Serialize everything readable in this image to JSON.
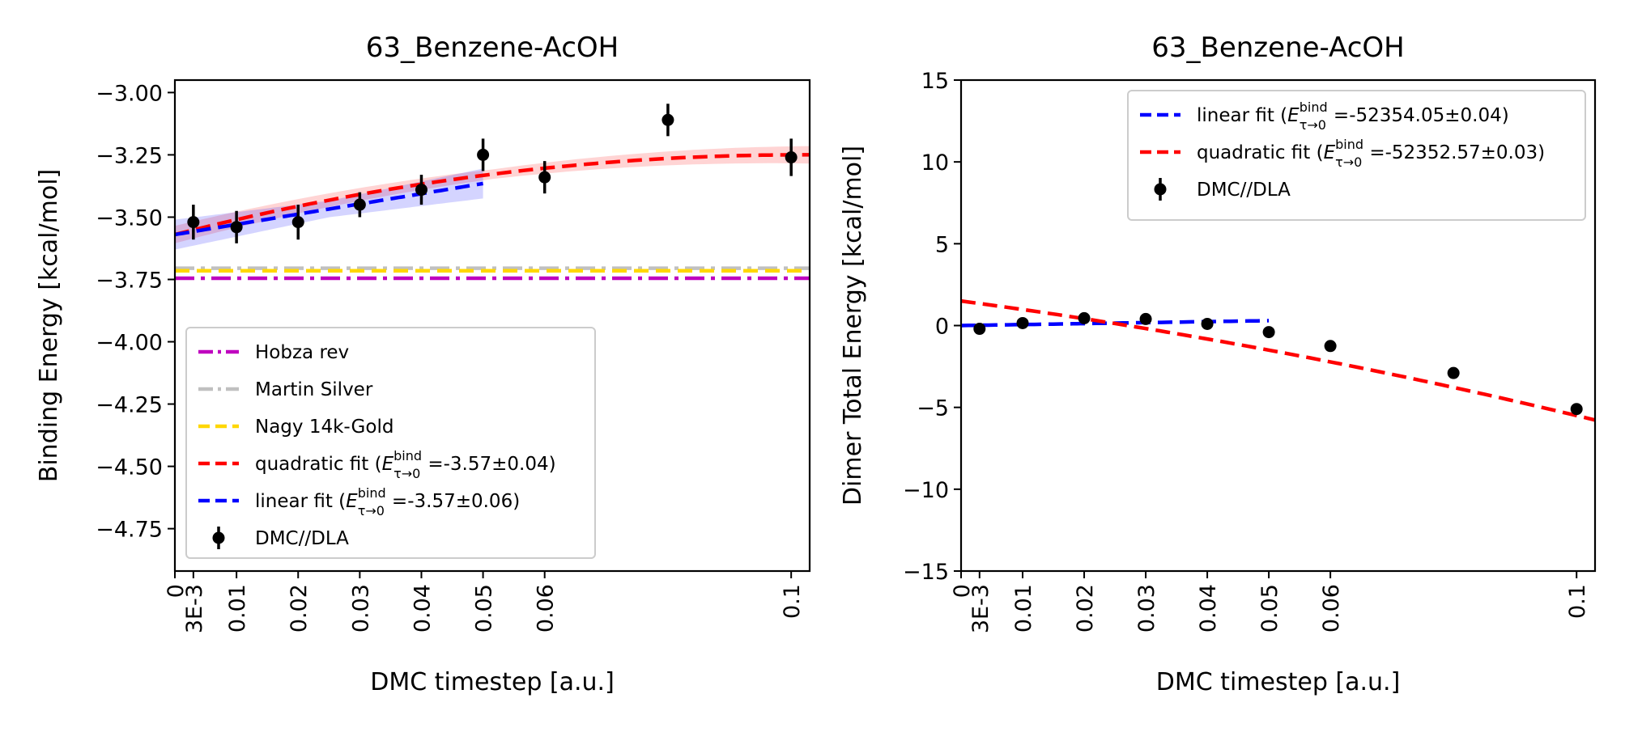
{
  "chart_data": [
    {
      "type": "scatter",
      "title": "63_Benzene-AcOH",
      "xlabel": "DMC timestep [a.u.]",
      "ylabel": "Binding Energy [kcal/mol]",
      "xlim": [
        0,
        0.103
      ],
      "ylim": [
        -4.92,
        -2.95
      ],
      "xticks": [
        0,
        0.003,
        0.01,
        0.02,
        0.03,
        0.04,
        0.05,
        0.06,
        0.1
      ],
      "xtick_labels": [
        "0",
        "3E-3",
        "0.01",
        "0.02",
        "0.03",
        "0.04",
        "0.05",
        "0.06",
        "0.1"
      ],
      "yticks": [
        -3.0,
        -3.25,
        -3.5,
        -3.75,
        -4.0,
        -4.25,
        -4.5,
        -4.75
      ],
      "ytick_labels": [
        "−3.00",
        "−3.25",
        "−3.50",
        "−3.75",
        "−4.00",
        "−4.25",
        "−4.50",
        "−4.75"
      ],
      "legend_loc": "lower-left",
      "reference_lines": [
        {
          "name": "Hobza rev",
          "y": -3.745,
          "color": "#bf00bf",
          "style": "dashdot"
        },
        {
          "name": "Martin Silver",
          "y": -3.705,
          "color": "#c0c0c0",
          "style": "dashdot"
        },
        {
          "name": "Nagy 14k-Gold",
          "y": -3.715,
          "color": "#ffd700",
          "style": "dashed"
        }
      ],
      "fits": [
        {
          "name_main": "quadratic fit (",
          "name_sym": "E",
          "name_sup": "bind",
          "name_sub": "τ→0",
          "name_value": " =-3.57±0.04)",
          "kind": "quadratic",
          "coef": [
            -3.57,
            6.3,
            -31.0
          ],
          "x_range": [
            0,
            0.103
          ],
          "band": 0.035,
          "color": "#ff0000"
        },
        {
          "name_main": "linear fit (",
          "name_sym": "E",
          "name_sup": "bind",
          "name_sub": "τ→0",
          "name_value": " =-3.57±0.06)",
          "kind": "linear",
          "coef": [
            -3.57,
            4.1
          ],
          "x_range": [
            0,
            0.05
          ],
          "band": 0.06,
          "color": "#0000ff"
        }
      ],
      "series": [
        {
          "name": "DMC//DLA",
          "x": [
            0.003,
            0.01,
            0.02,
            0.03,
            0.04,
            0.05,
            0.06,
            0.08,
            0.1
          ],
          "y": [
            -3.52,
            -3.54,
            -3.52,
            -3.45,
            -3.39,
            -3.25,
            -3.34,
            -3.11,
            -3.26
          ],
          "yerr": [
            0.07,
            0.065,
            0.07,
            0.05,
            0.06,
            0.065,
            0.065,
            0.065,
            0.075
          ]
        }
      ]
    },
    {
      "type": "scatter",
      "title": "63_Benzene-AcOH",
      "xlabel": "DMC timestep [a.u.]",
      "ylabel": "Dimer Total Energy [kcal/mol]",
      "xlim": [
        0,
        0.103
      ],
      "ylim": [
        -15,
        15
      ],
      "xticks": [
        0,
        0.003,
        0.01,
        0.02,
        0.03,
        0.04,
        0.05,
        0.06,
        0.1
      ],
      "xtick_labels": [
        "0",
        "3E-3",
        "0.01",
        "0.02",
        "0.03",
        "0.04",
        "0.05",
        "0.06",
        "0.1"
      ],
      "yticks": [
        15,
        10,
        5,
        0,
        -5,
        -10,
        -15
      ],
      "ytick_labels": [
        "15",
        "10",
        "5",
        "0",
        "−5",
        "−10",
        "−15"
      ],
      "legend_loc": "upper-right",
      "fits": [
        {
          "name_main": "linear fit (",
          "name_sym": "E",
          "name_sup": "bind",
          "name_sub": "τ→0",
          "name_value": " =-52354.05±0.04)",
          "kind": "linear",
          "coef": [
            0.0,
            6.0
          ],
          "x_range": [
            0,
            0.05
          ],
          "color": "#0000ff"
        },
        {
          "name_main": "quadratic fit (",
          "name_sym": "E",
          "name_sup": "bind",
          "name_sub": "τ→0",
          "name_value": " =-52352.57±0.03)",
          "kind": "quadratic",
          "coef": [
            1.5,
            -50.0,
            -200.0
          ],
          "x_range": [
            0,
            0.103
          ],
          "color": "#ff0000"
        }
      ],
      "series": [
        {
          "name": "DMC//DLA",
          "x": [
            0.003,
            0.01,
            0.02,
            0.03,
            0.04,
            0.05,
            0.06,
            0.08,
            0.1
          ],
          "y": [
            -0.2,
            0.15,
            0.45,
            0.4,
            0.1,
            -0.4,
            -1.25,
            -2.9,
            -5.1
          ]
        }
      ]
    }
  ]
}
